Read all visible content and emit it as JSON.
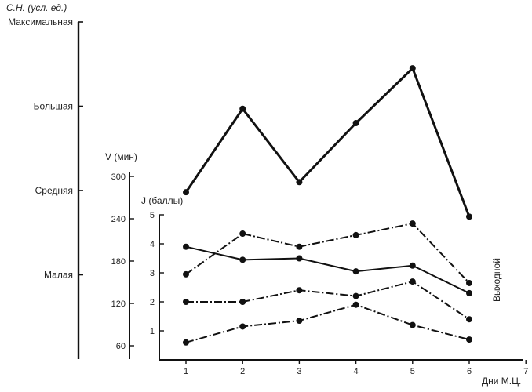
{
  "chart_data": {
    "type": "line",
    "x_axis": {
      "label": "Дни М.Ц.",
      "ticks": [
        1,
        2,
        3,
        4,
        5,
        6,
        7
      ],
      "range": [
        0.5,
        7
      ]
    },
    "sn_axis": {
      "label": "С.Н. (усл. ед.)",
      "levels": [
        "Максимальная",
        "Большая",
        "Средняя",
        "Малая"
      ],
      "range": [
        0,
        4
      ]
    },
    "v_axis": {
      "label": "V (мин)",
      "ticks": [
        60,
        120,
        180,
        240,
        300
      ],
      "range": [
        30,
        300
      ]
    },
    "j_axis": {
      "label": "J (баллы)",
      "ticks": [
        1,
        2,
        3,
        4,
        5
      ],
      "range": [
        0,
        5
      ]
    },
    "annotation": "Выходной",
    "series": [
      {
        "axis": "sn",
        "style": "solid-bold",
        "x": [
          1,
          2,
          3,
          4,
          5,
          6
        ],
        "values": [
          1.98,
          2.97,
          2.1,
          2.8,
          3.45,
          1.69
        ]
      },
      {
        "axis": "j",
        "style": "dashdot",
        "x": [
          1,
          2,
          3,
          4,
          5,
          6
        ],
        "values": [
          2.95,
          4.35,
          3.9,
          4.3,
          4.7,
          2.65
        ]
      },
      {
        "axis": "j",
        "style": "solid",
        "x": [
          1,
          2,
          3,
          4,
          5,
          6
        ],
        "values": [
          3.9,
          3.45,
          3.5,
          3.05,
          3.25,
          2.3
        ]
      },
      {
        "axis": "j",
        "style": "dashdot",
        "x": [
          1,
          2,
          3,
          4,
          5,
          6
        ],
        "values": [
          2.0,
          2.0,
          2.4,
          2.2,
          2.7,
          1.4
        ]
      },
      {
        "axis": "j",
        "style": "dashdot",
        "x": [
          1,
          2,
          3,
          4,
          5,
          6
        ],
        "values": [
          0.6,
          1.15,
          1.35,
          1.9,
          1.2,
          0.7
        ]
      }
    ]
  }
}
